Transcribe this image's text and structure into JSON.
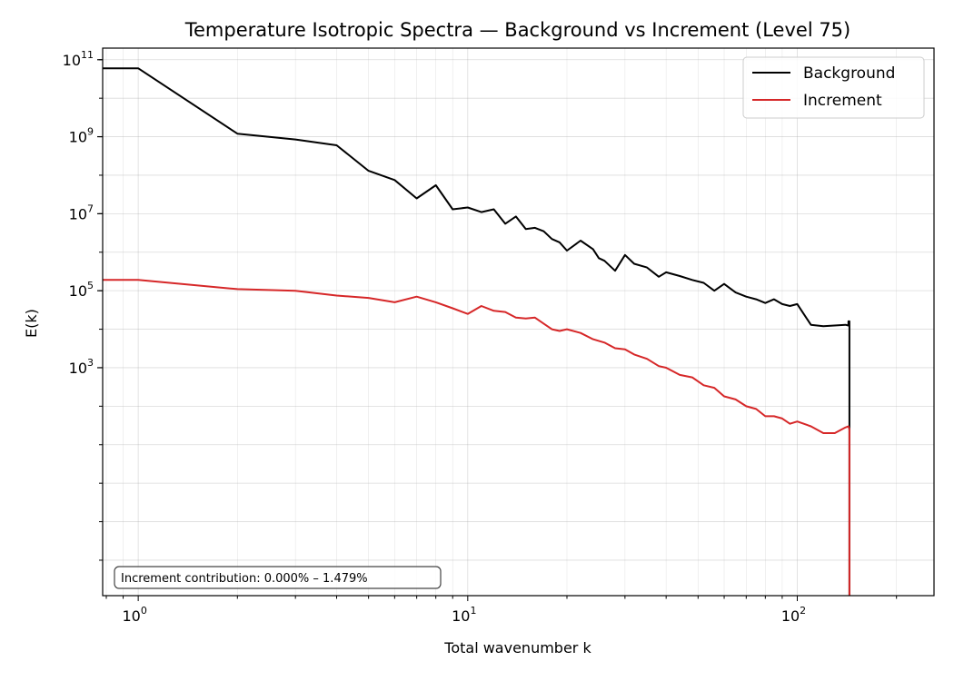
{
  "chart_data": {
    "type": "line",
    "title": "Temperature Isotropic Spectra — Background vs Increment (Level 75)",
    "xlabel": "Total wavenumber k",
    "ylabel": "E(k)",
    "xscale": "log",
    "yscale": "log",
    "xlim": [
      0.78,
      260
    ],
    "ylim": [
      0.0012,
      200000000000
    ],
    "grid": true,
    "legend_position": "top-right",
    "x_major_ticks": [
      {
        "value": 1,
        "base": "10",
        "exp": "0"
      },
      {
        "value": 10,
        "base": "10",
        "exp": "1"
      },
      {
        "value": 100,
        "base": "10",
        "exp": "2"
      }
    ],
    "y_major_ticks": [
      {
        "value": 1000,
        "base": "10",
        "exp": "3"
      },
      {
        "value": 100000,
        "base": "10",
        "exp": "5"
      },
      {
        "value": 10000000,
        "base": "10",
        "exp": "7"
      },
      {
        "value": 1000000000,
        "base": "10",
        "exp": "9"
      },
      {
        "value": 100000000000,
        "base": "10",
        "exp": "11"
      }
    ],
    "annotation": "Increment contribution: 0.000% – 1.479%",
    "series": [
      {
        "name": "Background",
        "color": "#000000",
        "x": [
          0.78,
          1,
          2,
          3,
          4,
          5,
          6,
          7,
          8,
          9,
          10,
          11,
          12,
          13,
          14,
          15,
          16,
          17,
          18,
          19,
          20,
          22,
          24,
          25,
          26,
          28,
          30,
          32,
          35,
          38,
          40,
          44,
          48,
          52,
          56,
          60,
          65,
          70,
          75,
          80,
          85,
          90,
          95,
          100,
          110,
          120,
          140,
          143,
          143,
          144,
          144
        ],
        "y": [
          60000000000,
          60000000000,
          1200000000,
          850000000,
          600000000,
          130000000,
          75000000,
          25000000,
          55000000,
          13000000,
          14500000,
          11000000,
          13000000,
          5500000,
          8500000,
          4000000,
          4300000,
          3500000,
          2200000,
          1800000,
          1100000,
          2000000,
          1200000,
          700000,
          600000,
          330000,
          850000,
          500000,
          400000,
          230000,
          300000,
          240000,
          190000,
          160000,
          100000,
          150000,
          90000,
          70000,
          60000,
          48000,
          60000,
          45000,
          40000,
          45000,
          13000,
          12000,
          13000,
          12500,
          16000,
          16000,
          0.0012
        ]
      },
      {
        "name": "Increment",
        "color": "#d62728",
        "x": [
          0.78,
          1,
          2,
          3,
          4,
          5,
          6,
          7,
          8,
          9,
          10,
          11,
          12,
          13,
          14,
          15,
          16,
          17,
          18,
          19,
          20,
          22,
          24,
          26,
          28,
          30,
          32,
          35,
          38,
          40,
          44,
          48,
          52,
          56,
          60,
          65,
          70,
          75,
          80,
          85,
          90,
          95,
          100,
          110,
          120,
          130,
          140,
          143,
          144,
          144
        ],
        "y": [
          190000,
          190000,
          110000,
          100000,
          75000,
          65000,
          50000,
          70000,
          50000,
          35000,
          25000,
          40000,
          30000,
          28000,
          20000,
          19000,
          20000,
          14000,
          10000,
          9000,
          10000,
          8000,
          5500,
          4500,
          3200,
          3000,
          2200,
          1700,
          1100,
          1000,
          650,
          560,
          350,
          300,
          180,
          150,
          100,
          85,
          55,
          55,
          48,
          35,
          40,
          30,
          20,
          20,
          28,
          30,
          25,
          0.0012
        ]
      }
    ]
  }
}
